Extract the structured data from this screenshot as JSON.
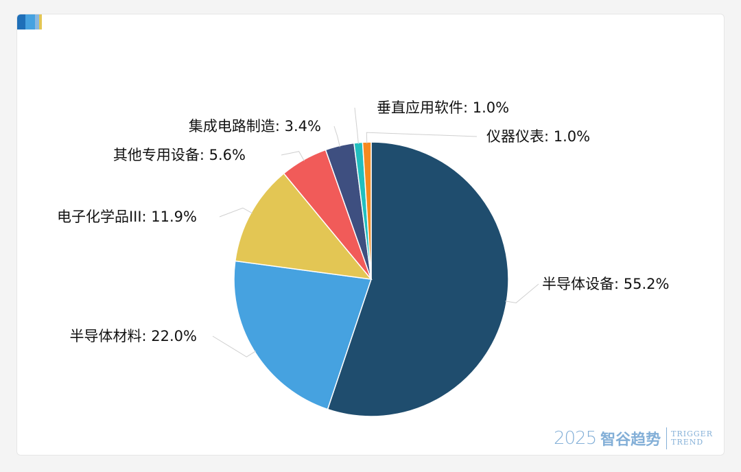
{
  "chart_data": {
    "type": "pie",
    "title": "",
    "slices": [
      {
        "label": "半导体设备: 55.2%",
        "name": "半导体设备",
        "value": 55.2,
        "color": "#1f4d6e"
      },
      {
        "label": "半导体材料: 22.0%",
        "name": "半导体材料",
        "value": 22.0,
        "color": "#46a2e0"
      },
      {
        "label": "电子化学品III: 11.9%",
        "name": "电子化学品III",
        "value": 11.9,
        "color": "#e3c654"
      },
      {
        "label": "其他专用设备: 5.6%",
        "name": "其他专用设备",
        "value": 5.6,
        "color": "#f15b59"
      },
      {
        "label": "集成电路制造: 3.4%",
        "name": "集成电路制造",
        "value": 3.4,
        "color": "#3e4f80"
      },
      {
        "label": "垂直应用软件: 1.0%",
        "name": "垂直应用软件",
        "value": 1.0,
        "color": "#22bfbf"
      },
      {
        "label": "仪器仪表: 1.0%",
        "name": "仪器仪表",
        "value": 1.0,
        "color": "#f58a1f"
      }
    ],
    "legend": "none"
  },
  "corner_colors": [
    "#1f6fb8",
    "#46a2e0",
    "#8ab8e0",
    "#e3c654"
  ],
  "watermark": {
    "year": "2025",
    "name": "智谷趋势",
    "en_line1": "TRIGGER",
    "en_line2": "TREND"
  }
}
